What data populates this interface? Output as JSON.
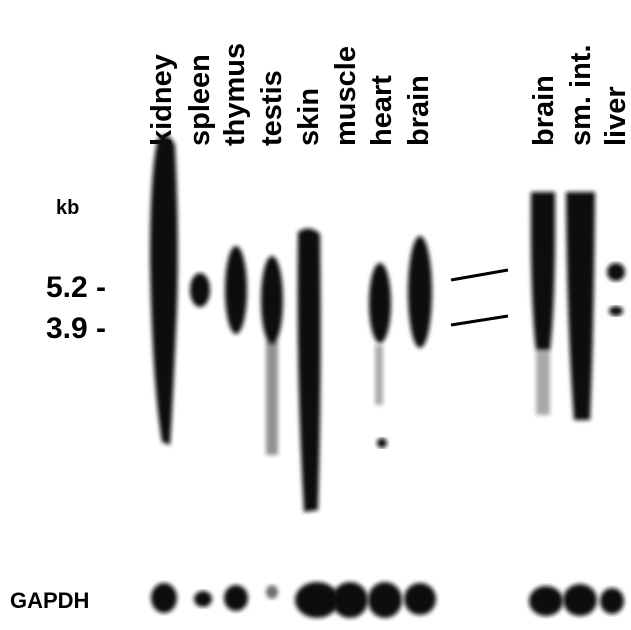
{
  "lanes": [
    "kidney",
    "spleen",
    "thymus",
    "testis",
    "skin",
    "muscle",
    "heart",
    "brain",
    "brain",
    "sm. int.",
    "liver"
  ],
  "markers": {
    "unit": "kb",
    "labels": [
      "5.2 -",
      "3.9 -"
    ]
  },
  "control": "GAPDH"
}
